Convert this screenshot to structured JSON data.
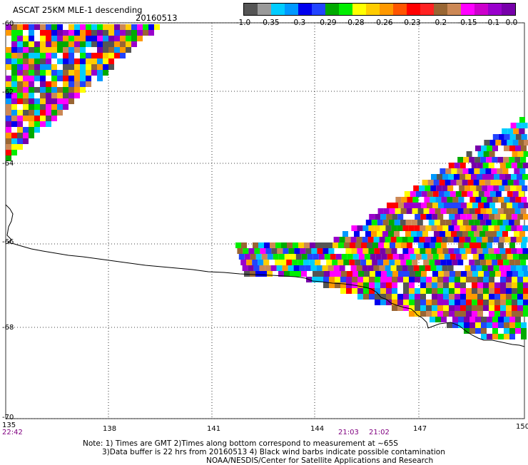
{
  "title": "ASCAT 25KM MLE-1 descending",
  "date": "20160513",
  "colorbar": {
    "colors": [
      "#555555",
      "#9a9a9a",
      "#00ccff",
      "#0099ff",
      "#0000ee",
      "#2244ff",
      "#00aa00",
      "#00ee00",
      "#ffff00",
      "#ffcc00",
      "#ff9900",
      "#ff5500",
      "#ff0000",
      "#ff2222",
      "#996633",
      "#cc8855",
      "#ff00ff",
      "#cc00cc",
      "#9900cc",
      "#7700aa"
    ],
    "labels": [
      "-1.0",
      "-0.35",
      "-0.3",
      "-0.29",
      "-0.28",
      "-0.26",
      "-0.23",
      "-0.2",
      "-0.15",
      "-0.1",
      "0.0"
    ]
  },
  "axes": {
    "lat_labels": [
      "-60",
      "-62",
      "-64",
      "-66",
      "-68",
      "-70"
    ],
    "lon_labels": [
      "135",
      "138",
      "141",
      "144",
      "147",
      "150"
    ]
  },
  "times": [
    "22:42",
    "21:03",
    "21:02"
  ],
  "notes": [
    "Note: 1) Times are GMT 2)Times along bottom correspond to measurement at ~65S",
    "3)Data buffer is 22 hrs from 20160513 4) Black wind barbs indicate possible contamination",
    "NOAA/NESDIS/Center for Satellite Applications and Research"
  ],
  "swath_colors": [
    "#0000ee",
    "#2244ff",
    "#00ccff",
    "#0099ff",
    "#ffff00",
    "#ff0000",
    "#ff9900",
    "#ff00ff",
    "#9900cc",
    "#7700aa",
    "#00aa00",
    "#00ee00",
    "#996633",
    "#ffffff",
    "#555555",
    "#ffcc00",
    "#cc8855"
  ]
}
